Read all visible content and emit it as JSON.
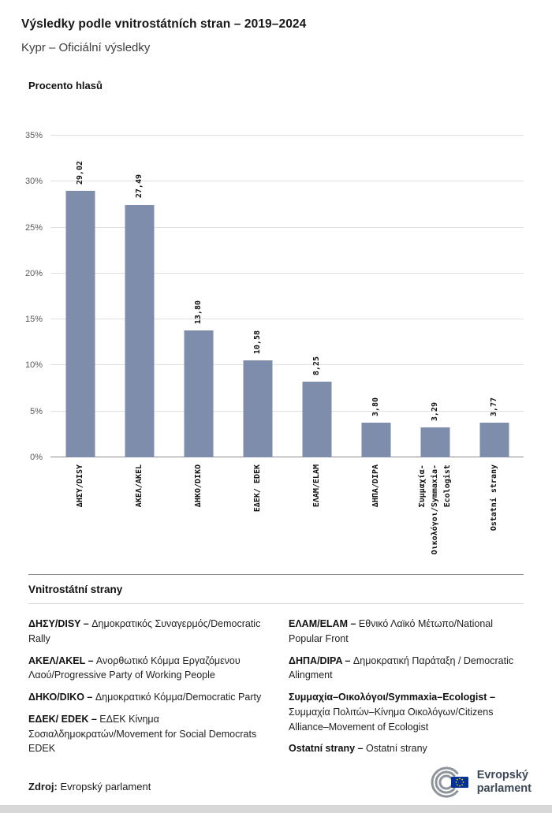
{
  "header": {
    "title": "Výsledky podle vnitrostátních stran – 2019–2024",
    "subtitle": "Kypr – Oficiální výsledky"
  },
  "chart_data": {
    "type": "bar",
    "title": "Procento hlasů",
    "categories": [
      "ΔΗΣΥ/DISY",
      "ΑΚΕΛ/AKEL",
      "ΔΗΚΟ/DIKO",
      "ΕΔΕΚ/ EDEK",
      "ΕΛΑΜ/ELAM",
      "ΔΗΠΑ/DIPA",
      "Συμμαχία-\nΟικολόγοι/Symmaxia-\nEcologist",
      "Ostatní strany"
    ],
    "values": [
      29.02,
      27.49,
      13.8,
      10.58,
      8.25,
      3.8,
      3.29,
      3.77
    ],
    "value_labels": [
      "29,02",
      "27,49",
      "13,80",
      "10,58",
      "8,25",
      "3,80",
      "3,29",
      "3,77"
    ],
    "xlabel": "",
    "ylabel": "Procento hlasů",
    "ylim": [
      0,
      35
    ],
    "ytick_values": [
      0,
      5,
      10,
      15,
      20,
      25,
      30,
      35
    ],
    "ytick_labels": [
      "0%",
      "5%",
      "10%",
      "15%",
      "20%",
      "25%",
      "30%",
      "35%"
    ],
    "grid": true,
    "legend_position": "none",
    "bar_color": "#7e8dac"
  },
  "legend": {
    "heading": "Vnitrostátní strany",
    "columns": [
      {
        "entries": [
          {
            "name": "ΔΗΣΥ/DISY –",
            "desc": "Δημοκρατικός Συναγερμός/Democratic Rally"
          },
          {
            "name": "ΑΚΕΛ/AKEL  –",
            "desc": "Ανορθωτικό Κόμμα Εργαζόμενου Λαού/Progressive Party of Working People"
          },
          {
            "name": "ΔΗΚΟ/DIKO –",
            "desc": "Δημοκρατικό Κόμμα/Democratic Party"
          },
          {
            "name": "ΕΔΕΚ/ EDEK –",
            "desc": "ΕΔΕΚ Κίνημα Σοσιαλδημοκρατών/Movement for Social Democrats EDEK"
          }
        ]
      },
      {
        "entries": [
          {
            "name": "ΕΛΑΜ/ELAM –",
            "desc": "Εθνικό Λαϊκό Μέτωπο/National Popular Front"
          },
          {
            "name": "ΔΗΠΑ/DIPA –",
            "desc": "Δημοκρατική Παράταξη / Democratic Alingment"
          },
          {
            "name": "Συμμαχία–Οικολόγοι/Symmaxia–Ecologist –",
            "desc": "Συμμαχία Πολιτών–Κίνημα Οικολόγων/Citizens Alliance–Movement of Ecologist"
          },
          {
            "name": "Ostatní strany –",
            "desc": "Ostatní strany"
          }
        ]
      }
    ]
  },
  "footer": {
    "source_label": "Zdroj:",
    "source_text": " Evropský parlament",
    "logo": {
      "line1": "Evropský",
      "line2": "parlament"
    }
  }
}
